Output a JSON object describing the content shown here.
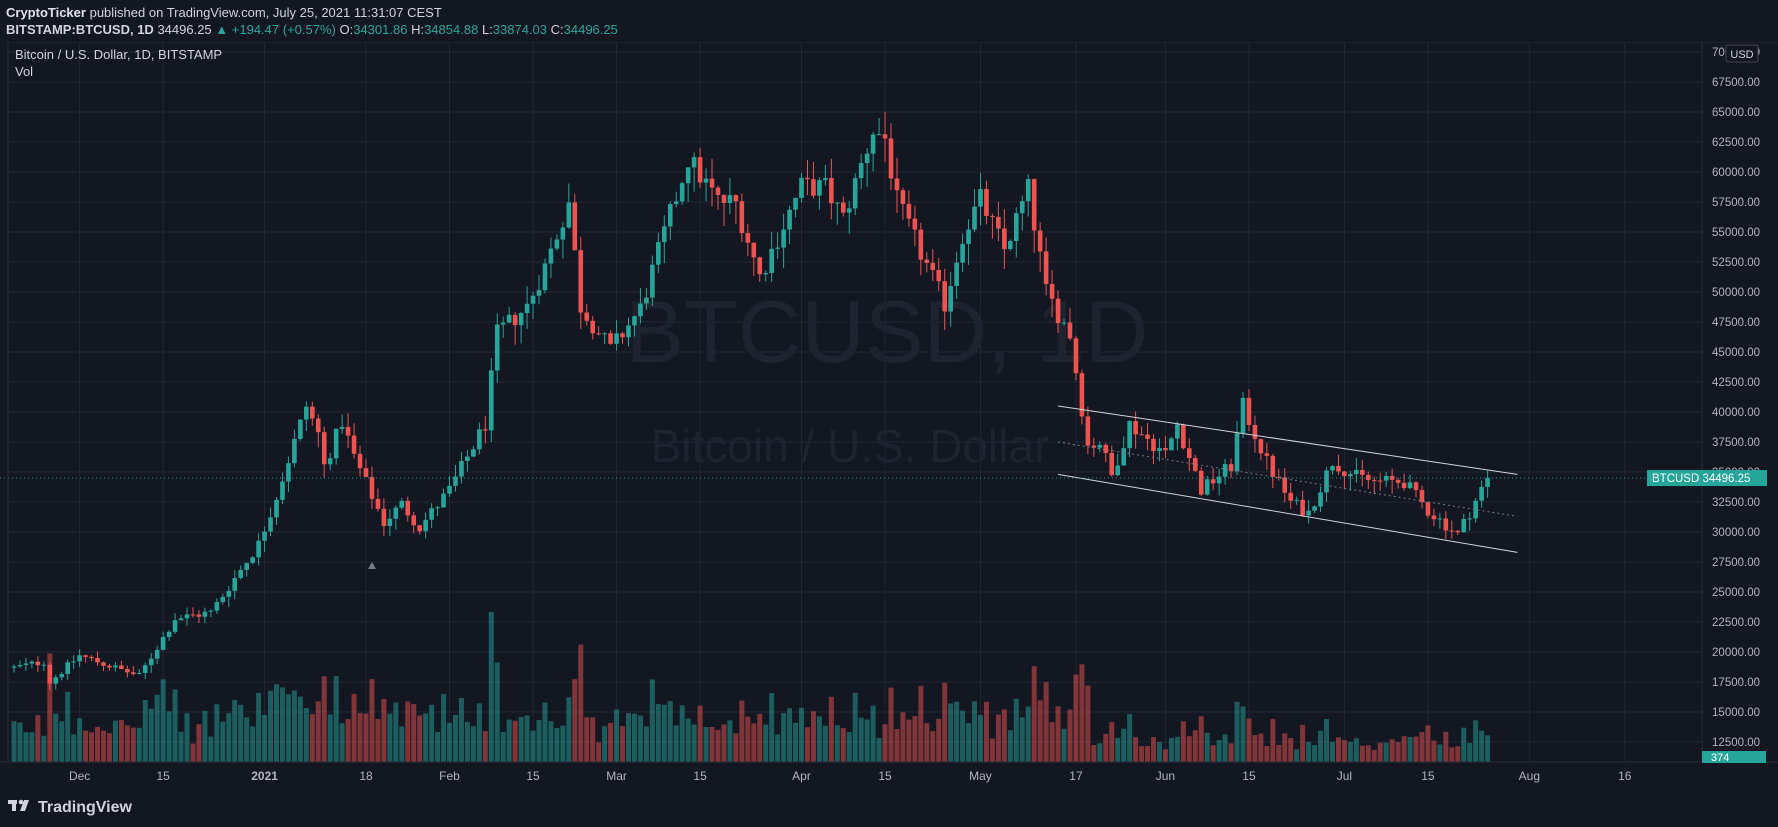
{
  "header": {
    "publisher": "CryptoTicker",
    "published_text": "published on TradingView.com, July 25, 2021 11:31:07 CEST",
    "symbol": "BITSTAMP:BTCUSD, 1D",
    "last": "34496.25",
    "change": "▲ +194.47 (+0.57%)",
    "o_label": "O:",
    "o_value": "34301.86",
    "h_label": "H:",
    "h_value": "34854.88",
    "l_label": "L:",
    "l_value": "33874.03",
    "c_label": "C:",
    "c_value": "34496.25"
  },
  "footer": {
    "brand": "TradingView",
    "logo_icon": "tradingview-logo-icon"
  },
  "chart_data": {
    "type": "candlestick",
    "legend_title": "Bitcoin / U.S. Dollar, 1D, BITSTAMP",
    "volume_label": "Vol",
    "watermark_symbol": "BTCUSD, 1D",
    "watermark_name": "Bitcoin / U.S. Dollar",
    "currency_label": "USD",
    "price_tag": "BTCUSD  34496.25",
    "volume_tag": "374",
    "last_price": 34496.25,
    "y_axis_ticks": [
      "70000.00",
      "67500.00",
      "65000.00",
      "62500.00",
      "60000.00",
      "57500.00",
      "55000.00",
      "52500.00",
      "50000.00",
      "47500.00",
      "45000.00",
      "42500.00",
      "40000.00",
      "37500.00",
      "35000.00",
      "32500.00",
      "30000.00",
      "27500.00",
      "25000.00",
      "22500.00",
      "20000.00",
      "17500.00",
      "15000.00",
      "12500.00"
    ],
    "x_axis_ticks": [
      "Dec",
      "15",
      "2021",
      "18",
      "Feb",
      "15",
      "Mar",
      "15",
      "Apr",
      "15",
      "May",
      "17",
      "Jun",
      "15",
      "Jul",
      "15",
      "Aug",
      "16"
    ],
    "x_start": "2020-11-20",
    "x_end": "2021-07-25",
    "colors": {
      "up": "#26a69a",
      "down": "#ef5350",
      "background": "#131722",
      "grid": "#232734",
      "text": "#b2b5be"
    },
    "anchors": [
      {
        "date": "2020-11-20",
        "price": 18700
      },
      {
        "date": "2020-11-25",
        "price": 19200
      },
      {
        "date": "2020-11-26",
        "price": 17500
      },
      {
        "date": "2020-12-01",
        "price": 19700
      },
      {
        "date": "2020-12-11",
        "price": 18000
      },
      {
        "date": "2020-12-17",
        "price": 22800
      },
      {
        "date": "2020-12-23",
        "price": 23300
      },
      {
        "date": "2020-12-31",
        "price": 29000
      },
      {
        "date": "2021-01-03",
        "price": 33000
      },
      {
        "date": "2021-01-08",
        "price": 40500
      },
      {
        "date": "2021-01-10",
        "price": 38200
      },
      {
        "date": "2021-01-11",
        "price": 35500
      },
      {
        "date": "2021-01-14",
        "price": 39200
      },
      {
        "date": "2021-01-16",
        "price": 36300
      },
      {
        "date": "2021-01-21",
        "price": 30800
      },
      {
        "date": "2021-01-24",
        "price": 32300
      },
      {
        "date": "2021-01-27",
        "price": 30400
      },
      {
        "date": "2021-02-01",
        "price": 33500
      },
      {
        "date": "2021-02-07",
        "price": 39000
      },
      {
        "date": "2021-02-09",
        "price": 46500
      },
      {
        "date": "2021-02-14",
        "price": 48800
      },
      {
        "date": "2021-02-17",
        "price": 52100
      },
      {
        "date": "2021-02-21",
        "price": 57500
      },
      {
        "date": "2021-02-23",
        "price": 48800
      },
      {
        "date": "2021-02-28",
        "price": 45200
      },
      {
        "date": "2021-03-05",
        "price": 48600
      },
      {
        "date": "2021-03-13",
        "price": 61100
      },
      {
        "date": "2021-03-18",
        "price": 57600
      },
      {
        "date": "2021-03-21",
        "price": 57400
      },
      {
        "date": "2021-03-25",
        "price": 51300
      },
      {
        "date": "2021-04-01",
        "price": 58800
      },
      {
        "date": "2021-04-05",
        "price": 58700
      },
      {
        "date": "2021-04-08",
        "price": 56100
      },
      {
        "date": "2021-04-13",
        "price": 63500
      },
      {
        "date": "2021-04-15",
        "price": 62800
      },
      {
        "date": "2021-04-17",
        "price": 57500
      },
      {
        "date": "2021-04-25",
        "price": 49000
      },
      {
        "date": "2021-04-28",
        "price": 54800
      },
      {
        "date": "2021-05-01",
        "price": 57700
      },
      {
        "date": "2021-05-05",
        "price": 53500
      },
      {
        "date": "2021-05-09",
        "price": 58500
      },
      {
        "date": "2021-05-12",
        "price": 50000
      },
      {
        "date": "2021-05-16",
        "price": 46500
      },
      {
        "date": "2021-05-19",
        "price": 37200
      },
      {
        "date": "2021-05-21",
        "price": 37500
      },
      {
        "date": "2021-05-23",
        "price": 34700
      },
      {
        "date": "2021-05-26",
        "price": 39000
      },
      {
        "date": "2021-06-01",
        "price": 36500
      },
      {
        "date": "2021-06-03",
        "price": 39000
      },
      {
        "date": "2021-06-07",
        "price": 33500
      },
      {
        "date": "2021-06-12",
        "price": 35500
      },
      {
        "date": "2021-06-14",
        "price": 40500
      },
      {
        "date": "2021-06-18",
        "price": 35800
      },
      {
        "date": "2021-06-22",
        "price": 32500
      },
      {
        "date": "2021-06-25",
        "price": 31600
      },
      {
        "date": "2021-06-29",
        "price": 35900
      },
      {
        "date": "2021-07-03",
        "price": 34600
      },
      {
        "date": "2021-07-06",
        "price": 34200
      },
      {
        "date": "2021-07-11",
        "price": 34200
      },
      {
        "date": "2021-07-15",
        "price": 31800
      },
      {
        "date": "2021-07-20",
        "price": 29800
      },
      {
        "date": "2021-07-25",
        "price": 34496
      }
    ]
  }
}
